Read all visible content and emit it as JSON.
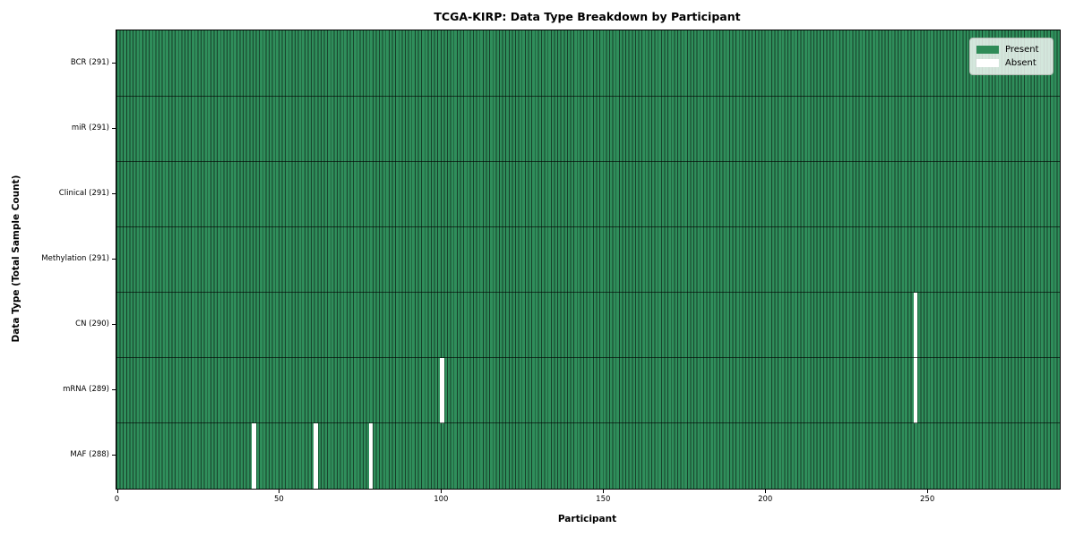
{
  "chart_data": {
    "type": "heatmap",
    "title": "TCGA-KIRP: Data Type Breakdown by Participant",
    "xlabel": "Participant",
    "ylabel": "Data Type (Total Sample Count)",
    "n_participants": 291,
    "xlim": [
      0,
      291
    ],
    "x_ticks": [
      0,
      50,
      100,
      150,
      200,
      250
    ],
    "grid": "cell-edges",
    "legend_position": "upper right",
    "rows": [
      {
        "label": "BCR (291)",
        "data_type": "BCR",
        "present_count": 291,
        "absent_participants": []
      },
      {
        "label": "miR (291)",
        "data_type": "miR",
        "present_count": 291,
        "absent_participants": []
      },
      {
        "label": "Clinical (291)",
        "data_type": "Clinical",
        "present_count": 291,
        "absent_participants": []
      },
      {
        "label": "Methylation (291)",
        "data_type": "Methylation",
        "present_count": 291,
        "absent_participants": []
      },
      {
        "label": "CN (290)",
        "data_type": "CN",
        "present_count": 290,
        "absent_participants": [
          246
        ]
      },
      {
        "label": "mRNA (289)",
        "data_type": "mRNA",
        "present_count": 289,
        "absent_participants": [
          100,
          246
        ]
      },
      {
        "label": "MAF (288)",
        "data_type": "MAF",
        "present_count": 288,
        "absent_participants": [
          42,
          61,
          78
        ]
      }
    ],
    "legend": [
      {
        "label": "Present",
        "color": "#2e8b57"
      },
      {
        "label": "Absent",
        "color": "#ffffff"
      }
    ],
    "colors": {
      "present": "#2e8b57",
      "absent": "#ffffff",
      "cell_edge": "#17402a",
      "row_divider": "#000000",
      "plot_border": "#000000",
      "background": "#ffffff"
    }
  }
}
